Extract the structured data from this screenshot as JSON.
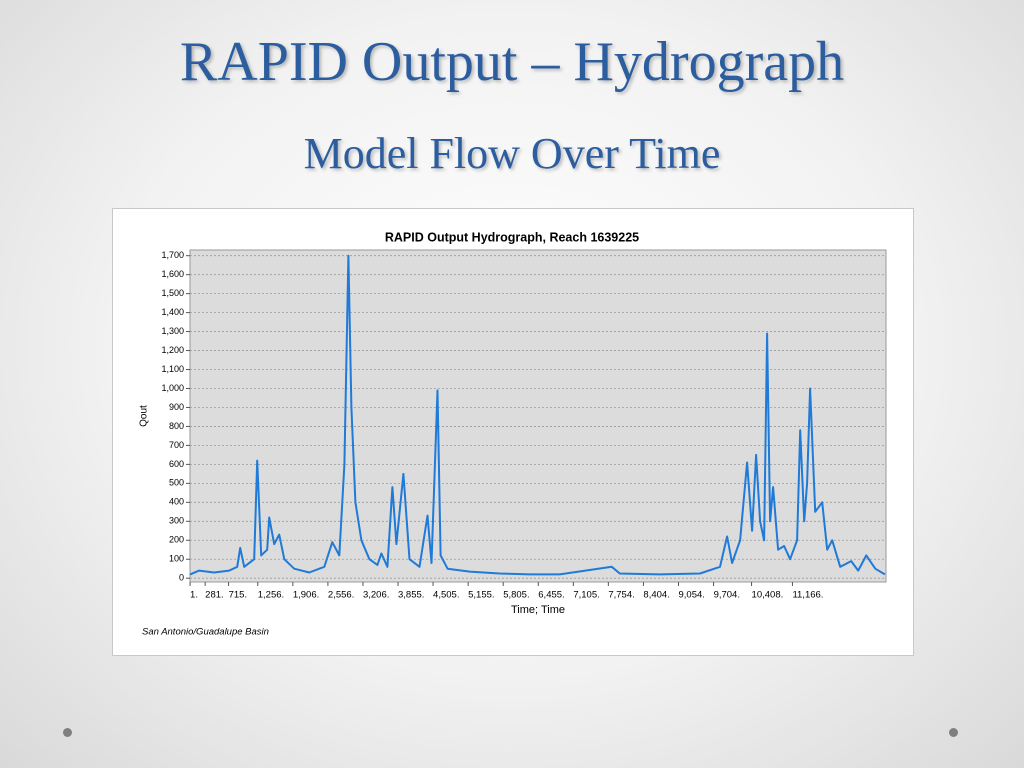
{
  "slide": {
    "title": "RAPID Output – Hydrograph",
    "subtitle": "Model Flow Over Time"
  },
  "chart_data": {
    "type": "line",
    "title": "RAPID Output Hydrograph, Reach 1639225",
    "y_label": "Qout",
    "x_label": "Time; Time",
    "note": "San Antonio/Guadalupe Basin",
    "color": "#1f7ad8",
    "grid": true,
    "xlim": [
      0,
      12900
    ],
    "ylim": [
      -20,
      1730
    ],
    "xticks": [
      {
        "value": 1,
        "label": "1."
      },
      {
        "value": 281,
        "label": "281."
      },
      {
        "value": 715,
        "label": "715."
      },
      {
        "value": 1256,
        "label": "1,256."
      },
      {
        "value": 1906,
        "label": "1,906."
      },
      {
        "value": 2556,
        "label": "2,556."
      },
      {
        "value": 3206,
        "label": "3,206."
      },
      {
        "value": 3855,
        "label": "3,855."
      },
      {
        "value": 4505,
        "label": "4,505."
      },
      {
        "value": 5155,
        "label": "5,155."
      },
      {
        "value": 5805,
        "label": "5,805."
      },
      {
        "value": 6455,
        "label": "6,455."
      },
      {
        "value": 7105,
        "label": "7,105."
      },
      {
        "value": 7754,
        "label": "7,754."
      },
      {
        "value": 8404,
        "label": "8,404."
      },
      {
        "value": 9054,
        "label": "9,054."
      },
      {
        "value": 9704,
        "label": "9,704."
      },
      {
        "value": 10408,
        "label": "10,408."
      },
      {
        "value": 11166,
        "label": "11,166."
      }
    ],
    "yticks": [
      0,
      100,
      200,
      300,
      400,
      500,
      600,
      700,
      800,
      900,
      {
        "value": 1000,
        "label": "1,000"
      },
      {
        "value": 1100,
        "label": "1,100"
      },
      {
        "value": 1200,
        "label": "1,200"
      },
      {
        "value": 1300,
        "label": "1,300"
      },
      {
        "value": 1400,
        "label": "1,400"
      },
      {
        "value": 1500,
        "label": "1,500"
      },
      {
        "value": 1600,
        "label": "1,600"
      },
      {
        "value": 1700,
        "label": "1,700"
      }
    ],
    "x": [
      1,
      168,
      447,
      725,
      874,
      930,
      1004,
      1190,
      1245,
      1320,
      1431,
      1468,
      1561,
      1654,
      1747,
      1932,
      2211,
      2489,
      2638,
      2768,
      2861,
      2935,
      2991,
      3065,
      3176,
      3325,
      3474,
      3548,
      3659,
      3752,
      3826,
      3956,
      4068,
      4253,
      4402,
      4476,
      4588,
      4644,
      4774,
      5182,
      5739,
      6296,
      6853,
      7818,
      7967,
      8710,
      9453,
      9824,
      9954,
      10047,
      10195,
      10325,
      10418,
      10493,
      10567,
      10641,
      10697,
      10752,
      10808,
      10901,
      11012,
      11123,
      11253,
      11309,
      11383,
      11438,
      11494,
      11587,
      11717,
      11810,
      11903,
      12051,
      12255,
      12385,
      12534,
      12701,
      12880
    ],
    "values": [
      20,
      40,
      30,
      40,
      60,
      160,
      60,
      100,
      620,
      120,
      150,
      320,
      180,
      230,
      100,
      50,
      30,
      60,
      190,
      120,
      600,
      1700,
      900,
      400,
      200,
      100,
      70,
      130,
      60,
      480,
      180,
      550,
      100,
      60,
      330,
      80,
      990,
      120,
      50,
      35,
      25,
      20,
      20,
      60,
      25,
      20,
      25,
      60,
      220,
      80,
      200,
      610,
      250,
      650,
      300,
      200,
      1290,
      300,
      480,
      150,
      170,
      100,
      200,
      780,
      300,
      500,
      1000,
      350,
      400,
      150,
      200,
      60,
      90,
      40,
      120,
      50,
      20
    ]
  }
}
